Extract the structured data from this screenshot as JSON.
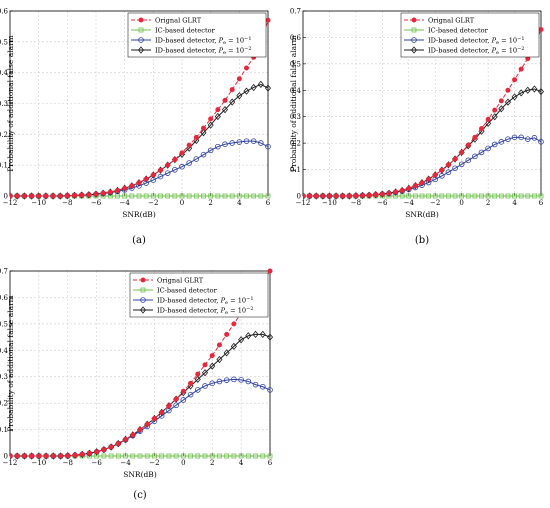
{
  "chart_data": [
    {
      "type": "line",
      "panel_label": "(a)",
      "xlabel": "SNR(dB)",
      "ylabel": "Probability of additional false alarm",
      "xlim": [
        -12,
        6
      ],
      "ylim": [
        0,
        0.6
      ],
      "xticks": [
        "−12",
        "−10",
        "−8",
        "−6",
        "−4",
        "−2",
        "0",
        "2",
        "4",
        "6"
      ],
      "yticks": [
        "0",
        "0.1",
        "0.2",
        "0.3",
        "0.4",
        "0.5",
        "0.6"
      ],
      "grid": true,
      "legend_position": "top-right",
      "x": [
        -12,
        -11.5,
        -11,
        -10.5,
        -10,
        -9.5,
        -9,
        -8.5,
        -8,
        -7.5,
        -7,
        -6.5,
        -6,
        -5.5,
        -5,
        -4.5,
        -4,
        -3.5,
        -3,
        -2.5,
        -2,
        -1.5,
        -1,
        -0.5,
        0,
        0.5,
        1,
        1.5,
        2,
        2.5,
        3,
        3.5,
        4,
        4.5,
        5,
        5.5,
        6
      ],
      "series": [
        {
          "name": "Orignal GLRT",
          "color": "#e8283a",
          "dash": "4,2",
          "marker": "dot",
          "values": [
            0,
            0,
            0,
            0,
            0,
            0,
            0,
            0,
            0.001,
            0.002,
            0.003,
            0.004,
            0.006,
            0.009,
            0.013,
            0.018,
            0.025,
            0.033,
            0.043,
            0.055,
            0.068,
            0.084,
            0.1,
            0.118,
            0.14,
            0.165,
            0.19,
            0.22,
            0.25,
            0.28,
            0.31,
            0.345,
            0.38,
            0.415,
            0.45,
            0.5,
            0.57
          ]
        },
        {
          "name": "IC-based detector",
          "color": "#6cc24a",
          "dash": "",
          "marker": "square",
          "values": [
            0,
            0,
            0,
            0,
            0,
            0,
            0,
            0,
            0,
            0,
            0,
            0,
            0,
            0,
            0,
            0,
            0,
            0,
            0,
            0,
            0,
            0,
            0,
            0,
            0,
            0,
            0,
            0,
            0,
            0,
            0,
            0,
            0,
            0,
            0,
            0,
            0
          ]
        },
        {
          "name": "ID-based detector, ",
          "sub": "P",
          "subscript": "e",
          "eq": " = 10",
          "exp": "−1",
          "color": "#2e3fa3",
          "dash": "",
          "marker": "circle",
          "values": [
            0,
            0,
            0,
            0,
            0,
            0,
            0,
            0,
            0.001,
            0.002,
            0.003,
            0.004,
            0.006,
            0.008,
            0.011,
            0.015,
            0.02,
            0.026,
            0.033,
            0.042,
            0.052,
            0.063,
            0.074,
            0.085,
            0.095,
            0.107,
            0.12,
            0.134,
            0.148,
            0.16,
            0.168,
            0.172,
            0.175,
            0.178,
            0.178,
            0.172,
            0.16
          ]
        },
        {
          "name": "ID-based detector, ",
          "sub": "P",
          "subscript": "e",
          "eq": " = 10",
          "exp": "−2",
          "color": "#1a1a1a",
          "dash": "",
          "marker": "diamond",
          "values": [
            0,
            0,
            0,
            0,
            0,
            0,
            0,
            0,
            0.001,
            0.002,
            0.003,
            0.004,
            0.006,
            0.009,
            0.013,
            0.018,
            0.025,
            0.033,
            0.043,
            0.055,
            0.068,
            0.084,
            0.1,
            0.118,
            0.135,
            0.155,
            0.18,
            0.205,
            0.23,
            0.258,
            0.28,
            0.305,
            0.325,
            0.34,
            0.352,
            0.362,
            0.35
          ]
        }
      ]
    },
    {
      "type": "line",
      "panel_label": "(b)",
      "xlabel": "SNR(dB)",
      "ylabel": "Probability of additional false alarm",
      "xlim": [
        -12,
        6
      ],
      "ylim": [
        0,
        0.7
      ],
      "xticks": [
        "−12",
        "−10",
        "−8",
        "−6",
        "−4",
        "−2",
        "0",
        "2",
        "4",
        "6"
      ],
      "yticks": [
        "0",
        "0.1",
        "0.2",
        "0.3",
        "0.4",
        "0.5",
        "0.6",
        "0.7"
      ],
      "grid": true,
      "legend_position": "top-right",
      "x": [
        -12,
        -11.5,
        -11,
        -10.5,
        -10,
        -9.5,
        -9,
        -8.5,
        -8,
        -7.5,
        -7,
        -6.5,
        -6,
        -5.5,
        -5,
        -4.5,
        -4,
        -3.5,
        -3,
        -2.5,
        -2,
        -1.5,
        -1,
        -0.5,
        0,
        0.5,
        1,
        1.5,
        2,
        2.5,
        3,
        3.5,
        4,
        4.5,
        5,
        5.5,
        6
      ],
      "series": [
        {
          "name": "Orignal GLRT",
          "color": "#e8283a",
          "dash": "4,2",
          "marker": "dot",
          "values": [
            0,
            0,
            0,
            0,
            0,
            0,
            0,
            0,
            0.001,
            0.002,
            0.003,
            0.005,
            0.007,
            0.01,
            0.015,
            0.021,
            0.029,
            0.039,
            0.05,
            0.064,
            0.08,
            0.098,
            0.118,
            0.14,
            0.165,
            0.193,
            0.222,
            0.255,
            0.29,
            0.325,
            0.36,
            0.4,
            0.44,
            0.48,
            0.52,
            0.57,
            0.63
          ]
        },
        {
          "name": "IC-based detector",
          "color": "#6cc24a",
          "dash": "",
          "marker": "square",
          "values": [
            0,
            0,
            0,
            0,
            0,
            0,
            0,
            0,
            0,
            0,
            0,
            0,
            0,
            0,
            0,
            0,
            0,
            0,
            0,
            0,
            0,
            0,
            0,
            0,
            0,
            0,
            0,
            0,
            0,
            0,
            0,
            0,
            0,
            0,
            0,
            0,
            0
          ]
        },
        {
          "name": "ID-based detector, ",
          "sub": "P",
          "subscript": "e",
          "eq": " = 10",
          "exp": "−1",
          "color": "#2e3fa3",
          "dash": "",
          "marker": "circle",
          "values": [
            0,
            0,
            0,
            0,
            0,
            0,
            0,
            0,
            0.001,
            0.002,
            0.003,
            0.005,
            0.007,
            0.01,
            0.014,
            0.019,
            0.025,
            0.032,
            0.041,
            0.051,
            0.063,
            0.076,
            0.09,
            0.105,
            0.12,
            0.135,
            0.15,
            0.165,
            0.18,
            0.195,
            0.205,
            0.215,
            0.222,
            0.222,
            0.215,
            0.22,
            0.205
          ]
        },
        {
          "name": "ID-based detector, ",
          "sub": "P",
          "subscript": "e",
          "eq": " = 10",
          "exp": "−2",
          "color": "#1a1a1a",
          "dash": "",
          "marker": "diamond",
          "values": [
            0,
            0,
            0,
            0,
            0,
            0,
            0,
            0,
            0.001,
            0.002,
            0.003,
            0.005,
            0.007,
            0.01,
            0.015,
            0.021,
            0.029,
            0.039,
            0.05,
            0.064,
            0.08,
            0.098,
            0.118,
            0.14,
            0.165,
            0.19,
            0.215,
            0.245,
            0.275,
            0.3,
            0.33,
            0.355,
            0.375,
            0.39,
            0.4,
            0.405,
            0.395
          ]
        }
      ]
    },
    {
      "type": "line",
      "panel_label": "(c)",
      "xlabel": "SNR(dB)",
      "ylabel": "Probability of additional false alarm",
      "xlim": [
        -12,
        6
      ],
      "ylim": [
        0,
        0.7
      ],
      "xticks": [
        "−12",
        "−10",
        "−8",
        "−6",
        "−4",
        "−2",
        "0",
        "2",
        "4",
        "6"
      ],
      "yticks": [
        "0",
        "0.1",
        "0.2",
        "0.3",
        "0.4",
        "0.5",
        "0.6",
        "0.7"
      ],
      "grid": true,
      "legend_position": "top-right",
      "x": [
        -12,
        -11.5,
        -11,
        -10.5,
        -10,
        -9.5,
        -9,
        -8.5,
        -8,
        -7.5,
        -7,
        -6.5,
        -6,
        -5.5,
        -5,
        -4.5,
        -4,
        -3.5,
        -3,
        -2.5,
        -2,
        -1.5,
        -1,
        -0.5,
        0,
        0.5,
        1,
        1.5,
        2,
        2.5,
        3,
        3.5,
        4,
        4.5,
        5,
        5.5,
        6
      ],
      "series": [
        {
          "name": "Orignal GLRT",
          "color": "#e8283a",
          "dash": "4,2",
          "marker": "dot",
          "values": [
            0,
            0,
            0,
            0,
            0,
            0,
            0,
            0,
            0.001,
            0.003,
            0.006,
            0.01,
            0.016,
            0.024,
            0.034,
            0.047,
            0.063,
            0.08,
            0.1,
            0.12,
            0.142,
            0.165,
            0.19,
            0.215,
            0.245,
            0.275,
            0.31,
            0.345,
            0.38,
            0.42,
            0.46,
            0.5,
            0.54,
            0.58,
            0.62,
            0.66,
            0.7
          ]
        },
        {
          "name": "IC-based detector",
          "color": "#6cc24a",
          "dash": "",
          "marker": "square",
          "values": [
            0,
            0,
            0,
            0,
            0,
            0,
            0,
            0,
            0,
            0,
            0,
            0,
            0,
            0,
            0,
            0,
            0,
            0,
            0,
            0,
            0,
            0,
            0,
            0,
            0,
            0,
            0,
            0,
            0,
            0,
            0,
            0,
            0,
            0,
            0,
            0,
            0
          ]
        },
        {
          "name": "ID-based detector, ",
          "sub": "P",
          "subscript": "e",
          "eq": " = 10",
          "exp": "−1",
          "color": "#2e3fa3",
          "dash": "",
          "marker": "circle",
          "values": [
            0,
            0,
            0,
            0,
            0,
            0,
            0,
            0,
            0.001,
            0.003,
            0.006,
            0.01,
            0.016,
            0.024,
            0.034,
            0.047,
            0.061,
            0.077,
            0.094,
            0.112,
            0.132,
            0.152,
            0.172,
            0.192,
            0.212,
            0.232,
            0.25,
            0.265,
            0.275,
            0.282,
            0.287,
            0.29,
            0.288,
            0.282,
            0.27,
            0.262,
            0.25
          ]
        },
        {
          "name": "ID-based detector, ",
          "sub": "P",
          "subscript": "e",
          "eq": " = 10",
          "exp": "−2",
          "color": "#1a1a1a",
          "dash": "",
          "marker": "diamond",
          "values": [
            0,
            0,
            0,
            0,
            0,
            0,
            0,
            0,
            0.001,
            0.003,
            0.006,
            0.01,
            0.016,
            0.024,
            0.034,
            0.047,
            0.063,
            0.08,
            0.1,
            0.12,
            0.142,
            0.165,
            0.19,
            0.215,
            0.24,
            0.265,
            0.29,
            0.315,
            0.34,
            0.365,
            0.39,
            0.415,
            0.44,
            0.455,
            0.46,
            0.46,
            0.45
          ]
        }
      ]
    }
  ]
}
